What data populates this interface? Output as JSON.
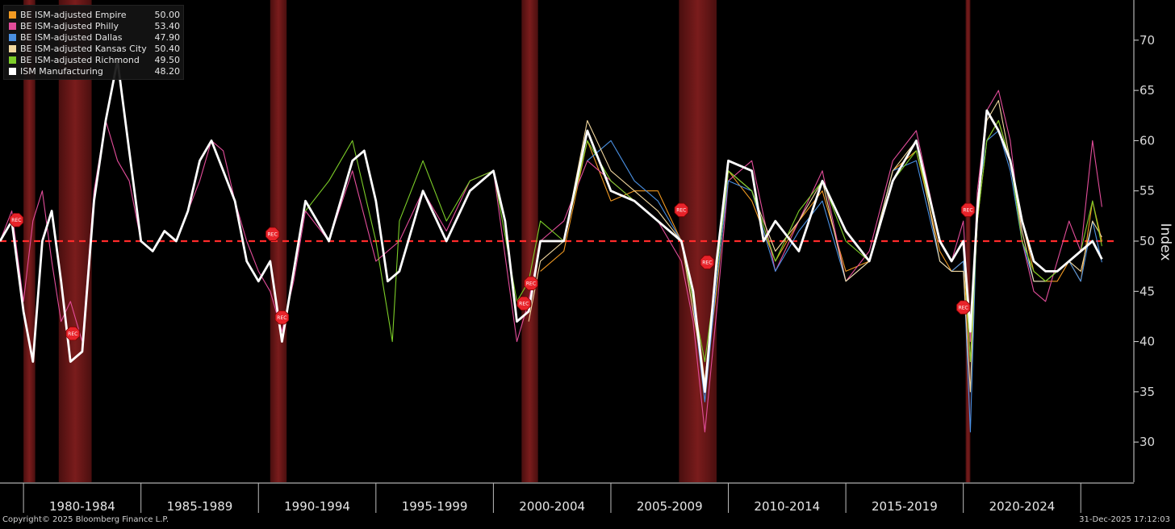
{
  "chart_data": {
    "type": "line",
    "ylabel": "Index",
    "ylim": [
      26,
      74
    ],
    "xlim": [
      1979.0,
      2026.4
    ],
    "yticks": [
      30,
      35,
      40,
      45,
      50,
      55,
      60,
      65,
      70
    ],
    "x_periods": [
      "1980-1984",
      "1985-1989",
      "1990-1994",
      "1995-1999",
      "2000-2004",
      "2005-2009",
      "2010-2014",
      "2015-2019",
      "2020-2024"
    ],
    "reference_line": 50,
    "recessions": [
      [
        1980.0,
        1980.5
      ],
      [
        1981.5,
        1982.9
      ],
      [
        1990.5,
        1991.2
      ],
      [
        2001.2,
        2001.9
      ],
      [
        2007.9,
        2009.5
      ],
      [
        2020.1,
        2020.3
      ]
    ],
    "rec_label": "REC",
    "rec_markers": [
      {
        "x": 1979.7,
        "y": 52.1
      },
      {
        "x": 1982.1,
        "y": 40.8
      },
      {
        "x": 1990.6,
        "y": 50.7
      },
      {
        "x": 1991.0,
        "y": 42.4
      },
      {
        "x": 2001.3,
        "y": 43.8
      },
      {
        "x": 2001.6,
        "y": 45.8
      },
      {
        "x": 2008.0,
        "y": 53.1
      },
      {
        "x": 2009.1,
        "y": 47.9
      },
      {
        "x": 2020.0,
        "y": 43.4
      },
      {
        "x": 2020.2,
        "y": 53.1
      }
    ],
    "series": [
      {
        "name": "BE ISM-adjusted Empire",
        "color": "#f29a22",
        "last": "50.00",
        "x": [
          2002.0,
          2003.0,
          2004.0,
          2005.0,
          2006.0,
          2007.0,
          2008.0,
          2008.5,
          2009.0,
          2009.5,
          2010.0,
          2011.0,
          2012.0,
          2013.0,
          2014.0,
          2015.0,
          2016.0,
          2017.0,
          2018.0,
          2019.0,
          2019.5,
          2020.0,
          2020.3,
          2020.6,
          2021.0,
          2021.5,
          2022.0,
          2022.5,
          2023.0,
          2023.5,
          2024.0,
          2024.5,
          2025.0,
          2025.5,
          2025.9
        ],
        "y": [
          47,
          49,
          60,
          54,
          55,
          55,
          50,
          45,
          36,
          45,
          57,
          54,
          48,
          52,
          55,
          47,
          48,
          57,
          59,
          49,
          47,
          48,
          38,
          52,
          60,
          62,
          58,
          52,
          47,
          46,
          46,
          48,
          46,
          54,
          50.0
        ]
      },
      {
        "name": "BE ISM-adjusted Philly",
        "color": "#e24d9a",
        "last": "53.40",
        "x": [
          1979.0,
          1979.5,
          1980.0,
          1980.4,
          1980.8,
          1981.2,
          1981.6,
          1982.0,
          1982.5,
          1983.0,
          1983.5,
          1984.0,
          1984.5,
          1985.0,
          1985.5,
          1986.0,
          1986.5,
          1987.0,
          1987.5,
          1988.0,
          1988.5,
          1989.0,
          1989.5,
          1990.0,
          1990.5,
          1991.0,
          1991.5,
          1992.0,
          1993.0,
          1994.0,
          1995.0,
          1996.0,
          1997.0,
          1998.0,
          1999.0,
          2000.0,
          2001.0,
          2001.5,
          2002.0,
          2003.0,
          2004.0,
          2005.0,
          2006.0,
          2007.0,
          2008.0,
          2008.5,
          2009.0,
          2009.5,
          2010.0,
          2011.0,
          2012.0,
          2013.0,
          2014.0,
          2015.0,
          2016.0,
          2017.0,
          2018.0,
          2019.0,
          2019.5,
          2020.0,
          2020.3,
          2020.6,
          2021.0,
          2021.5,
          2022.0,
          2022.5,
          2023.0,
          2023.5,
          2024.0,
          2024.5,
          2025.0,
          2025.5,
          2025.9
        ],
        "y": [
          50,
          53,
          44,
          52,
          55,
          48,
          42,
          44,
          40,
          55,
          62,
          58,
          56,
          50,
          49,
          51,
          50,
          53,
          56,
          60,
          59,
          54,
          50,
          47,
          45,
          41,
          46,
          53,
          50,
          57,
          48,
          50,
          55,
          51,
          56,
          57,
          40,
          44,
          50,
          52,
          58,
          56,
          54,
          52,
          48,
          42,
          31,
          43,
          56,
          58,
          47,
          52,
          57,
          46,
          49,
          58,
          61,
          50,
          48,
          52,
          40,
          55,
          63,
          65,
          60,
          50,
          45,
          44,
          48,
          52,
          49,
          60,
          53.4
        ]
      },
      {
        "name": "BE ISM-adjusted Dallas",
        "color": "#4a90e2",
        "last": "47.90",
        "x": [
          2004.0,
          2005.0,
          2006.0,
          2007.0,
          2008.0,
          2008.5,
          2009.0,
          2009.5,
          2010.0,
          2011.0,
          2012.0,
          2013.0,
          2014.0,
          2015.0,
          2016.0,
          2017.0,
          2018.0,
          2019.0,
          2019.5,
          2020.0,
          2020.3,
          2020.6,
          2021.0,
          2021.5,
          2022.0,
          2022.5,
          2023.0,
          2023.5,
          2024.0,
          2024.5,
          2025.0,
          2025.5,
          2025.9
        ],
        "y": [
          58,
          60,
          56,
          54,
          50,
          44,
          34,
          46,
          56,
          55,
          47,
          51,
          54,
          46,
          48,
          57,
          58,
          48,
          47,
          48,
          31,
          54,
          60,
          61,
          57,
          50,
          46,
          46,
          47,
          48,
          46,
          52,
          47.9
        ]
      },
      {
        "name": "BE ISM-adjusted Kansas City",
        "color": "#f3d9a0",
        "last": "50.40",
        "x": [
          2001.5,
          2002.0,
          2003.0,
          2004.0,
          2005.0,
          2006.0,
          2007.0,
          2008.0,
          2008.5,
          2009.0,
          2009.5,
          2010.0,
          2011.0,
          2012.0,
          2013.0,
          2014.0,
          2015.0,
          2016.0,
          2017.0,
          2018.0,
          2019.0,
          2019.5,
          2020.0,
          2020.3,
          2020.6,
          2021.0,
          2021.5,
          2022.0,
          2022.5,
          2023.0,
          2023.5,
          2024.0,
          2024.5,
          2025.0,
          2025.5,
          2025.9
        ],
        "y": [
          42,
          48,
          50,
          62,
          57,
          55,
          53,
          50,
          43,
          36,
          47,
          57,
          55,
          49,
          52,
          56,
          46,
          48,
          57,
          60,
          48,
          47,
          47,
          35,
          54,
          62,
          64,
          58,
          51,
          46,
          46,
          47,
          48,
          47,
          52,
          50.4
        ]
      },
      {
        "name": "BE ISM-adjusted Richmond",
        "color": "#7ccd28",
        "last": "49.50",
        "x": [
          1992.0,
          1993.0,
          1994.0,
          1995.0,
          1995.7,
          1996.0,
          1997.0,
          1998.0,
          1999.0,
          2000.0,
          2001.0,
          2001.5,
          2002.0,
          2003.0,
          2004.0,
          2005.0,
          2006.0,
          2007.0,
          2008.0,
          2008.5,
          2009.0,
          2009.5,
          2010.0,
          2011.0,
          2012.0,
          2013.0,
          2014.0,
          2015.0,
          2016.0,
          2017.0,
          2018.0,
          2019.0,
          2019.5,
          2020.0,
          2020.3,
          2020.6,
          2021.0,
          2021.5,
          2022.0,
          2022.5,
          2023.0,
          2023.5,
          2024.0,
          2024.5,
          2025.0,
          2025.5,
          2025.9
        ],
        "y": [
          53,
          56,
          60,
          50,
          40,
          52,
          58,
          52,
          56,
          57,
          44,
          46,
          52,
          50,
          60,
          56,
          54,
          52,
          50,
          44,
          38,
          47,
          57,
          55,
          48,
          53,
          56,
          50,
          48,
          56,
          59,
          50,
          48,
          50,
          38,
          52,
          60,
          62,
          58,
          50,
          47,
          46,
          47,
          48,
          49,
          54,
          49.5
        ]
      },
      {
        "name": "ISM Manufacturing",
        "color": "#ffffff",
        "last": "48.20",
        "x": [
          1979.0,
          1979.5,
          1980.0,
          1980.4,
          1980.8,
          1981.2,
          1981.6,
          1982.0,
          1982.5,
          1983.0,
          1983.5,
          1984.0,
          1984.5,
          1985.0,
          1985.5,
          1986.0,
          1986.5,
          1987.0,
          1987.5,
          1988.0,
          1988.5,
          1989.0,
          1989.5,
          1990.0,
          1990.5,
          1991.0,
          1991.5,
          1992.0,
          1993.0,
          1994.0,
          1994.5,
          1995.0,
          1995.5,
          1996.0,
          1997.0,
          1998.0,
          1999.0,
          2000.0,
          2000.5,
          2001.0,
          2001.5,
          2002.0,
          2003.0,
          2004.0,
          2004.5,
          2005.0,
          2006.0,
          2007.0,
          2008.0,
          2008.5,
          2009.0,
          2009.5,
          2010.0,
          2011.0,
          2011.5,
          2012.0,
          2013.0,
          2014.0,
          2015.0,
          2016.0,
          2017.0,
          2018.0,
          2019.0,
          2019.5,
          2020.0,
          2020.3,
          2020.6,
          2021.0,
          2021.5,
          2022.0,
          2022.5,
          2023.0,
          2023.5,
          2024.0,
          2024.5,
          2025.0,
          2025.5,
          2025.9
        ],
        "y": [
          50,
          52,
          43,
          38,
          50,
          53,
          46,
          38,
          39,
          54,
          62,
          68,
          59,
          50,
          49,
          51,
          50,
          53,
          58,
          60,
          57,
          54,
          48,
          46,
          48,
          40,
          47,
          54,
          50,
          58,
          59,
          54,
          46,
          47,
          55,
          50,
          55,
          57,
          52,
          42,
          43,
          50,
          50,
          61,
          58,
          55,
          54,
          52,
          50,
          45,
          35,
          48,
          58,
          57,
          50,
          52,
          49,
          56,
          51,
          48,
          56,
          60,
          50,
          48,
          50,
          41,
          53,
          63,
          61,
          58,
          52,
          48,
          47,
          47,
          48,
          49,
          50,
          48.2
        ]
      }
    ]
  },
  "footer": {
    "copyright": "Copyright© 2025 Bloomberg Finance L.P.",
    "timestamp": "31-Dec-2025 17:12:03"
  }
}
